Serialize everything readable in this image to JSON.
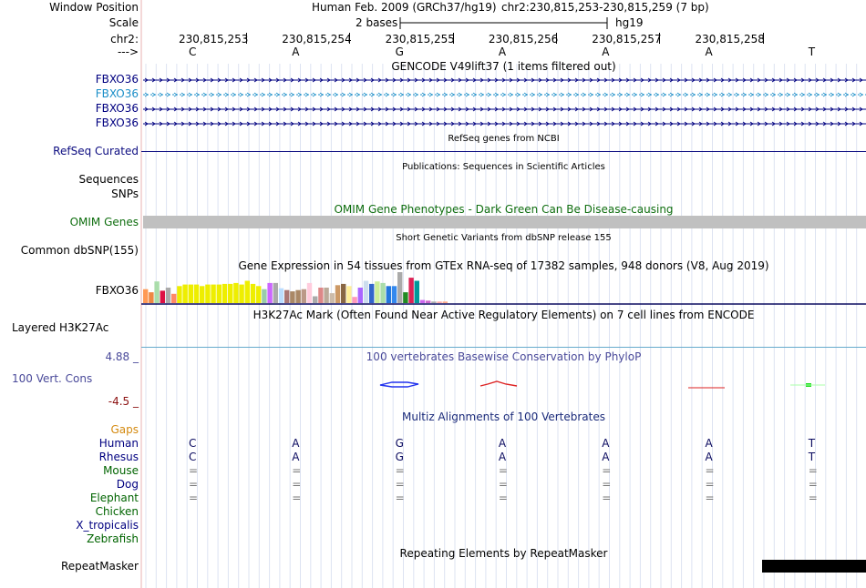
{
  "header": {
    "window_position_label": "Window Position",
    "assembly": "Human Feb. 2009 (GRCh37/hg19)",
    "position": "chr2:230,815,253-230,815,259 (7 bp)",
    "scale_label": "Scale",
    "scale_value": "2 bases",
    "scale_db": "hg19",
    "chrom_label": "chr2:",
    "strand_label": "--->"
  },
  "coordinates": [
    "230,815,253",
    "230,815,254",
    "230,815,255",
    "230,815,256",
    "230,815,257",
    "230,815,258"
  ],
  "bases": [
    "C",
    "A",
    "G",
    "A",
    "A",
    "A",
    "T"
  ],
  "gencode": {
    "title": "GENCODE V49lift37 (1 items filtered out)",
    "tracks": [
      {
        "label": "FBXO36",
        "color": "#000080"
      },
      {
        "label": "FBXO36",
        "color": "#1a8ec8"
      },
      {
        "label": "FBXO36",
        "color": "#000080"
      },
      {
        "label": "FBXO36",
        "color": "#000080"
      }
    ]
  },
  "refseq": {
    "title": "RefSeq genes from NCBI",
    "label": "RefSeq Curated",
    "color": "#0b0b80"
  },
  "publications": {
    "title": "Publications: Sequences in Scientific Articles",
    "label1": "Sequences",
    "label2": "SNPs"
  },
  "omim": {
    "title": "OMIM Gene Phenotypes - Dark Green Can Be Disease-causing",
    "label": "OMIM Genes",
    "color": "#0f6e0f"
  },
  "dbsnp": {
    "title": "Short Genetic Variants from dbSNP release 155",
    "label": "Common dbSNP(155)"
  },
  "gtex": {
    "title": "Gene Expression in 54 tissues from GTEx RNA-seq of 17382 samples, 948 donors (V8, Aug 2019)",
    "label": "FBXO36",
    "values": [
      0.45,
      0.35,
      0.7,
      0.4,
      0.5,
      0.3,
      0.55,
      0.6,
      0.6,
      0.6,
      0.55,
      0.6,
      0.6,
      0.6,
      0.62,
      0.62,
      0.65,
      0.6,
      0.72,
      0.62,
      0.55,
      0.45,
      0.65,
      0.65,
      0.48,
      0.42,
      0.38,
      0.42,
      0.45,
      0.65,
      0.22,
      0.5,
      0.5,
      0.32,
      0.58,
      0.62,
      0.55,
      0.2,
      0.5,
      0.72,
      0.62,
      0.7,
      0.65,
      0.55,
      0.55,
      1.0,
      0.35,
      0.82,
      0.72,
      0.1,
      0.08,
      0.05,
      0.05,
      0.05
    ],
    "colors": [
      "#ff9955",
      "#ee8844",
      "#aaddaa",
      "#dd1144",
      "#aaaaaa",
      "#ff8866",
      "#eeee00",
      "#eeee00",
      "#eeee00",
      "#eeee00",
      "#eeee00",
      "#eeee00",
      "#eeee00",
      "#eeee00",
      "#eeee00",
      "#eeee00",
      "#eeee00",
      "#eeee00",
      "#eeee00",
      "#eeee00",
      "#eeee00",
      "#99ccaa",
      "#cc66ff",
      "#aaaaaa",
      "#bbddff",
      "#aa7777",
      "#aa8866",
      "#aa8866",
      "#bb9988",
      "#ffccdd",
      "#aaaaaa",
      "#dd8888",
      "#bbaa99",
      "#ccbbaa",
      "#cc9966",
      "#886644",
      "#ffee99",
      "#ff99bb",
      "#aa66ff",
      "#ccddee",
      "#3366cc",
      "#ccee99",
      "#aaddaa",
      "#2277dd",
      "#3388ee",
      "#aaaaaa",
      "#228b22",
      "#dd2255",
      "#009999",
      "#cc66ee",
      "#cc66cc",
      "#aaaaaa",
      "#ffaaaa",
      "#ffaa88"
    ]
  },
  "h3k27ac": {
    "title": "H3K27Ac Mark (Often Found Near Active Regulatory Elements) on 7 cell lines from ENCODE",
    "label": "Layered H3K27Ac"
  },
  "phylop": {
    "title": "100 vertebrates Basewise Conservation by PhyloP",
    "label": "100 Vert. Cons",
    "max": "4.88 _",
    "min": "-4.5 _"
  },
  "multiz": {
    "title": "Multiz Alignments of 100 Vertebrates",
    "gaps_label": "Gaps",
    "species": [
      {
        "name": "Human",
        "color": "#000080",
        "seq": [
          "C",
          "A",
          "G",
          "A",
          "A",
          "A",
          "T"
        ]
      },
      {
        "name": "Rhesus",
        "color": "#000080",
        "seq": [
          "C",
          "A",
          "G",
          "A",
          "A",
          "A",
          "T"
        ]
      },
      {
        "name": "Mouse",
        "color": "#006400",
        "seq": [
          "=",
          "=",
          "=",
          "=",
          "=",
          "=",
          "="
        ]
      },
      {
        "name": "Dog",
        "color": "#000080",
        "seq": [
          "=",
          "=",
          "=",
          "=",
          "=",
          "=",
          "="
        ]
      },
      {
        "name": "Elephant",
        "color": "#006400",
        "seq": [
          "=",
          "=",
          "=",
          "=",
          "=",
          "=",
          "="
        ]
      },
      {
        "name": "Chicken",
        "color": "#006400",
        "seq": []
      },
      {
        "name": "X_tropicalis",
        "color": "#000080",
        "seq": []
      },
      {
        "name": "Zebrafish",
        "color": "#006400",
        "seq": []
      }
    ]
  },
  "repeatmasker": {
    "title": "Repeating Elements by RepeatMasker",
    "label": "RepeatMasker"
  }
}
